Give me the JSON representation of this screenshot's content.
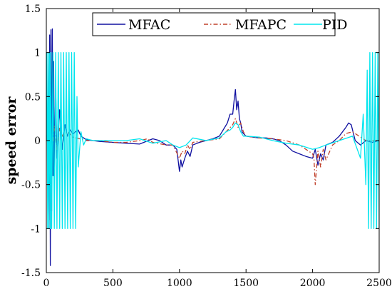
{
  "chart_data": {
    "type": "line",
    "title": "",
    "xlabel": "",
    "ylabel": "speed error",
    "xlim": [
      0,
      2500
    ],
    "ylim": [
      -1.5,
      1.5
    ],
    "xticks": [
      "0",
      "500",
      "1000",
      "1500",
      "2000",
      "2500"
    ],
    "yticks": [
      "1.5",
      "1",
      "0.5",
      "0",
      "-0.5",
      "-1",
      "-1.5"
    ],
    "grid": false,
    "legend_position": "top-right",
    "series": [
      {
        "name": "MFAC",
        "color": "#1010a0",
        "style": "solid",
        "x": [
          0,
          10,
          20,
          25,
          30,
          35,
          40,
          45,
          50,
          55,
          60,
          70,
          80,
          100,
          120,
          140,
          160,
          180,
          200,
          220,
          240,
          260,
          280,
          300,
          350,
          400,
          500,
          600,
          700,
          800,
          850,
          900,
          950,
          980,
          1000,
          1010,
          1020,
          1040,
          1060,
          1080,
          1100,
          1150,
          1200,
          1250,
          1300,
          1340,
          1360,
          1380,
          1400,
          1410,
          1420,
          1430,
          1440,
          1450,
          1460,
          1470,
          1480,
          1500,
          1550,
          1600,
          1650,
          1700,
          1750,
          1800,
          1850,
          1900,
          1950,
          2000,
          2020,
          2040,
          2060,
          2080,
          2100,
          2150,
          2200,
          2250,
          2270,
          2290,
          2320,
          2360,
          2400,
          2450,
          2500
        ],
        "y": [
          0,
          0.3,
          -0.9,
          1.2,
          -1.42,
          1.26,
          -0.8,
          1.27,
          -0.4,
          0.9,
          -0.3,
          0.6,
          -0.2,
          0.35,
          -0.1,
          0.18,
          0.05,
          0.12,
          0.08,
          0.1,
          0.12,
          0.05,
          0.03,
          0.01,
          0.0,
          -0.01,
          -0.02,
          -0.03,
          -0.04,
          0.02,
          0.0,
          -0.05,
          -0.05,
          -0.1,
          -0.35,
          -0.22,
          -0.3,
          -0.2,
          -0.12,
          -0.18,
          -0.05,
          -0.02,
          0.0,
          0.02,
          0.05,
          0.15,
          0.2,
          0.3,
          0.3,
          0.45,
          0.58,
          0.35,
          0.45,
          0.25,
          0.2,
          0.1,
          0.08,
          0.05,
          0.04,
          0.03,
          0.03,
          0.02,
          0.0,
          -0.05,
          -0.12,
          -0.15,
          -0.18,
          -0.2,
          -0.1,
          -0.28,
          -0.15,
          -0.22,
          -0.05,
          -0.02,
          0.05,
          0.15,
          0.2,
          0.18,
          0.0,
          -0.05,
          0.0,
          -0.02,
          0.0
        ]
      },
      {
        "name": "MFAPC",
        "color": "#c0402a",
        "style": "dashdot",
        "x": [
          0,
          20,
          40,
          60,
          80,
          100,
          120,
          160,
          200,
          250,
          300,
          400,
          500,
          600,
          700,
          760,
          800,
          900,
          950,
          1000,
          1020,
          1040,
          1060,
          1080,
          1100,
          1200,
          1300,
          1350,
          1400,
          1420,
          1440,
          1460,
          1480,
          1500,
          1600,
          1700,
          1800,
          1900,
          1950,
          2000,
          2010,
          2020,
          2040,
          2060,
          2080,
          2100,
          2150,
          2200,
          2250,
          2300,
          2400,
          2500
        ],
        "y": [
          0,
          0.1,
          -0.12,
          0.17,
          -0.1,
          0.14,
          0.05,
          0.1,
          0.04,
          0.02,
          0.0,
          0.0,
          -0.02,
          -0.02,
          0.0,
          0.02,
          -0.02,
          -0.05,
          -0.05,
          -0.2,
          -0.12,
          -0.15,
          -0.05,
          -0.1,
          -0.02,
          0.0,
          0.02,
          0.1,
          0.18,
          0.25,
          0.15,
          0.2,
          0.1,
          0.05,
          0.03,
          0.02,
          0.0,
          -0.05,
          -0.1,
          -0.15,
          -0.2,
          -0.5,
          -0.12,
          -0.3,
          -0.1,
          -0.22,
          -0.05,
          0.0,
          0.08,
          0.1,
          0.0,
          0.0
        ]
      },
      {
        "name": "PID",
        "color": "#00e5ee",
        "style": "solid",
        "x": [
          0,
          5,
          10,
          15,
          20,
          25,
          30,
          35,
          40,
          50,
          60,
          70,
          80,
          90,
          100,
          110,
          120,
          130,
          140,
          150,
          160,
          170,
          180,
          190,
          200,
          210,
          220,
          230,
          240,
          260,
          280,
          300,
          350,
          400,
          500,
          600,
          700,
          800,
          900,
          950,
          1000,
          1050,
          1100,
          1200,
          1300,
          1350,
          1380,
          1400,
          1420,
          1440,
          1460,
          1480,
          1500,
          1600,
          1700,
          1800,
          1900,
          2000,
          2050,
          2100,
          2200,
          2300,
          2360,
          2380,
          2400,
          2410,
          2420,
          2430,
          2440,
          2450,
          2460,
          2470,
          2480,
          2490,
          2500
        ],
        "y": [
          0,
          1.0,
          -1.0,
          1.0,
          -1.0,
          1.0,
          -1.0,
          1.0,
          -1.0,
          1.0,
          -1.0,
          1.0,
          -1.0,
          1.0,
          -1.0,
          1.0,
          -1.0,
          1.0,
          -1.0,
          1.0,
          -1.0,
          1.0,
          -1.0,
          1.0,
          -1.0,
          1.0,
          -1.0,
          0.5,
          -0.3,
          0.1,
          -0.05,
          0.02,
          0.0,
          0.0,
          0.0,
          0.0,
          0.02,
          -0.03,
          0.0,
          -0.05,
          -0.08,
          -0.05,
          0.03,
          0.0,
          0.03,
          0.1,
          0.12,
          0.15,
          0.2,
          0.18,
          0.1,
          0.05,
          0.05,
          0.04,
          0.0,
          -0.03,
          -0.05,
          -0.1,
          -0.08,
          -0.05,
          0.0,
          0.05,
          -0.2,
          0.3,
          -0.5,
          0.8,
          -1.0,
          1.0,
          -1.0,
          1.0,
          -1.0,
          1.0,
          -1.0,
          1.0,
          -1.0
        ]
      }
    ]
  }
}
